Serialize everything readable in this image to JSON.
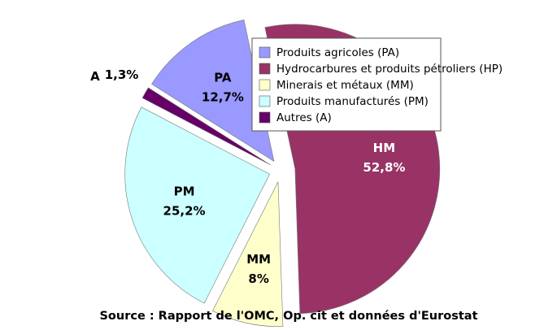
{
  "chart_data": {
    "type": "pie",
    "caption": "Source : Rapport de l'OMC, Op. cit et données d'Eurostat",
    "categories": [
      "Hydrocarbures et produits pétroliers (HP)",
      "Minerais et métaux (MM)",
      "Produits manufacturés (PM)",
      "Autres (A)",
      "Produits agricoles (PA)"
    ],
    "legend_order": [
      4,
      0,
      1,
      2,
      3
    ],
    "labels": [
      "HM",
      "MM",
      "PM",
      "A",
      "PA"
    ],
    "values": [
      52.8,
      8,
      25.2,
      1.3,
      12.7
    ],
    "value_labels": [
      "52,8%",
      "8%",
      "25,2%",
      "1,3%",
      "12,7%"
    ],
    "colors": [
      "#993366",
      "#ffffcc",
      "#ccffff",
      "#660066",
      "#9999ff"
    ],
    "label_colors": [
      "#ffffff",
      "#000000",
      "#000000",
      "#000000",
      "#000000"
    ],
    "legend": "upper right"
  }
}
